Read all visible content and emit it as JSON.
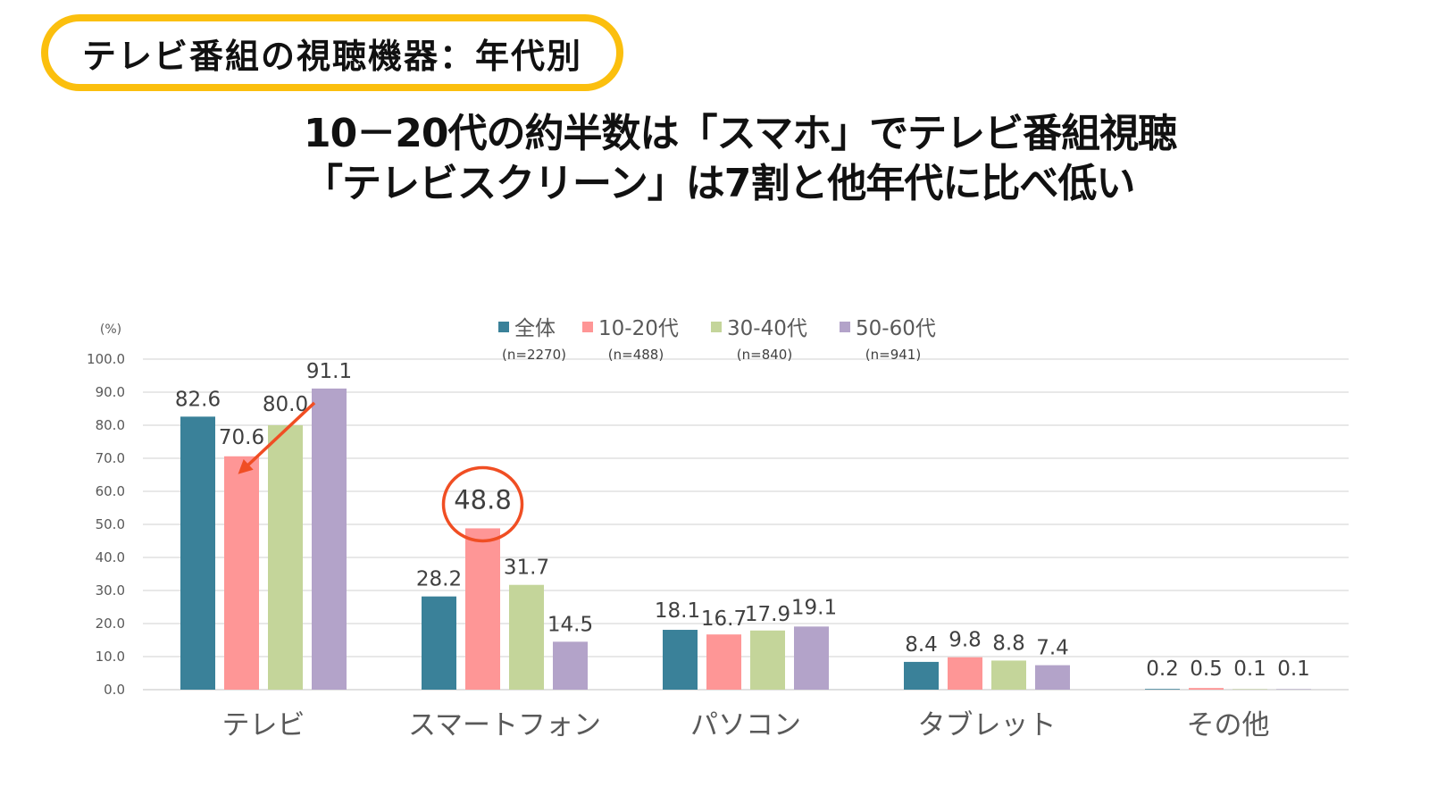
{
  "header": {
    "badge_title": "テレビ番組の視聴機器：年代別",
    "headline_line1": "10－20代の約半数は「スマホ」でテレビ番組視聴",
    "headline_line2": "「テレビスクリーン」は7割と他年代に比べ低い"
  },
  "chart_data": {
    "type": "bar",
    "title": "テレビ番組の視聴機器：年代別",
    "ylabel": "(%)",
    "xlabel": "",
    "ylim": [
      0,
      100
    ],
    "yticks": [
      "0.0",
      "10.0",
      "20.0",
      "30.0",
      "40.0",
      "50.0",
      "60.0",
      "70.0",
      "80.0",
      "90.0",
      "100.0"
    ],
    "grid": true,
    "legend_position": "top-center",
    "categories": [
      "テレビ",
      "スマートフォン",
      "パソコン",
      "タブレット",
      "その他"
    ],
    "series": [
      {
        "name": "全体",
        "n": "(n=2270)",
        "color": "#3a8199",
        "values": [
          82.6,
          28.2,
          18.1,
          8.4,
          0.2
        ],
        "labels": [
          "82.6",
          "28.2",
          "18.1",
          "8.4",
          "0.2"
        ]
      },
      {
        "name": "10-20代",
        "n": "(n=488)",
        "color": "#fe9696",
        "values": [
          70.6,
          48.8,
          16.7,
          9.8,
          0.5
        ],
        "labels": [
          "70.6",
          "48.8",
          "16.7",
          "9.8",
          "0.5"
        ]
      },
      {
        "name": "30-40代",
        "n": "(n=840)",
        "color": "#c4d59a",
        "values": [
          80.0,
          31.7,
          17.9,
          8.8,
          0.1
        ],
        "labels": [
          "80.0",
          "31.7",
          "17.9",
          "8.8",
          "0.1"
        ]
      },
      {
        "name": "50-60代",
        "n": "(n=941)",
        "color": "#b3a3c9",
        "values": [
          91.1,
          14.5,
          19.1,
          7.4,
          0.1
        ],
        "labels": [
          "91.1",
          "14.5",
          "19.1",
          "7.4",
          "0.1"
        ]
      }
    ],
    "annotations": [
      {
        "type": "arrow",
        "from": {
          "category": "テレビ",
          "series": "50-60代",
          "value": 91.1
        },
        "to": {
          "category": "テレビ",
          "series": "10-20代",
          "value": 70.6
        },
        "color": "#f04e23"
      },
      {
        "type": "circle",
        "target": {
          "category": "スマートフォン",
          "series": "10-20代",
          "value": 48.8
        },
        "color": "#f04e23"
      }
    ]
  },
  "colors": {
    "badge_border": "#fbbf0e",
    "annotation": "#f04e23",
    "grid": "#e0e0e0"
  }
}
